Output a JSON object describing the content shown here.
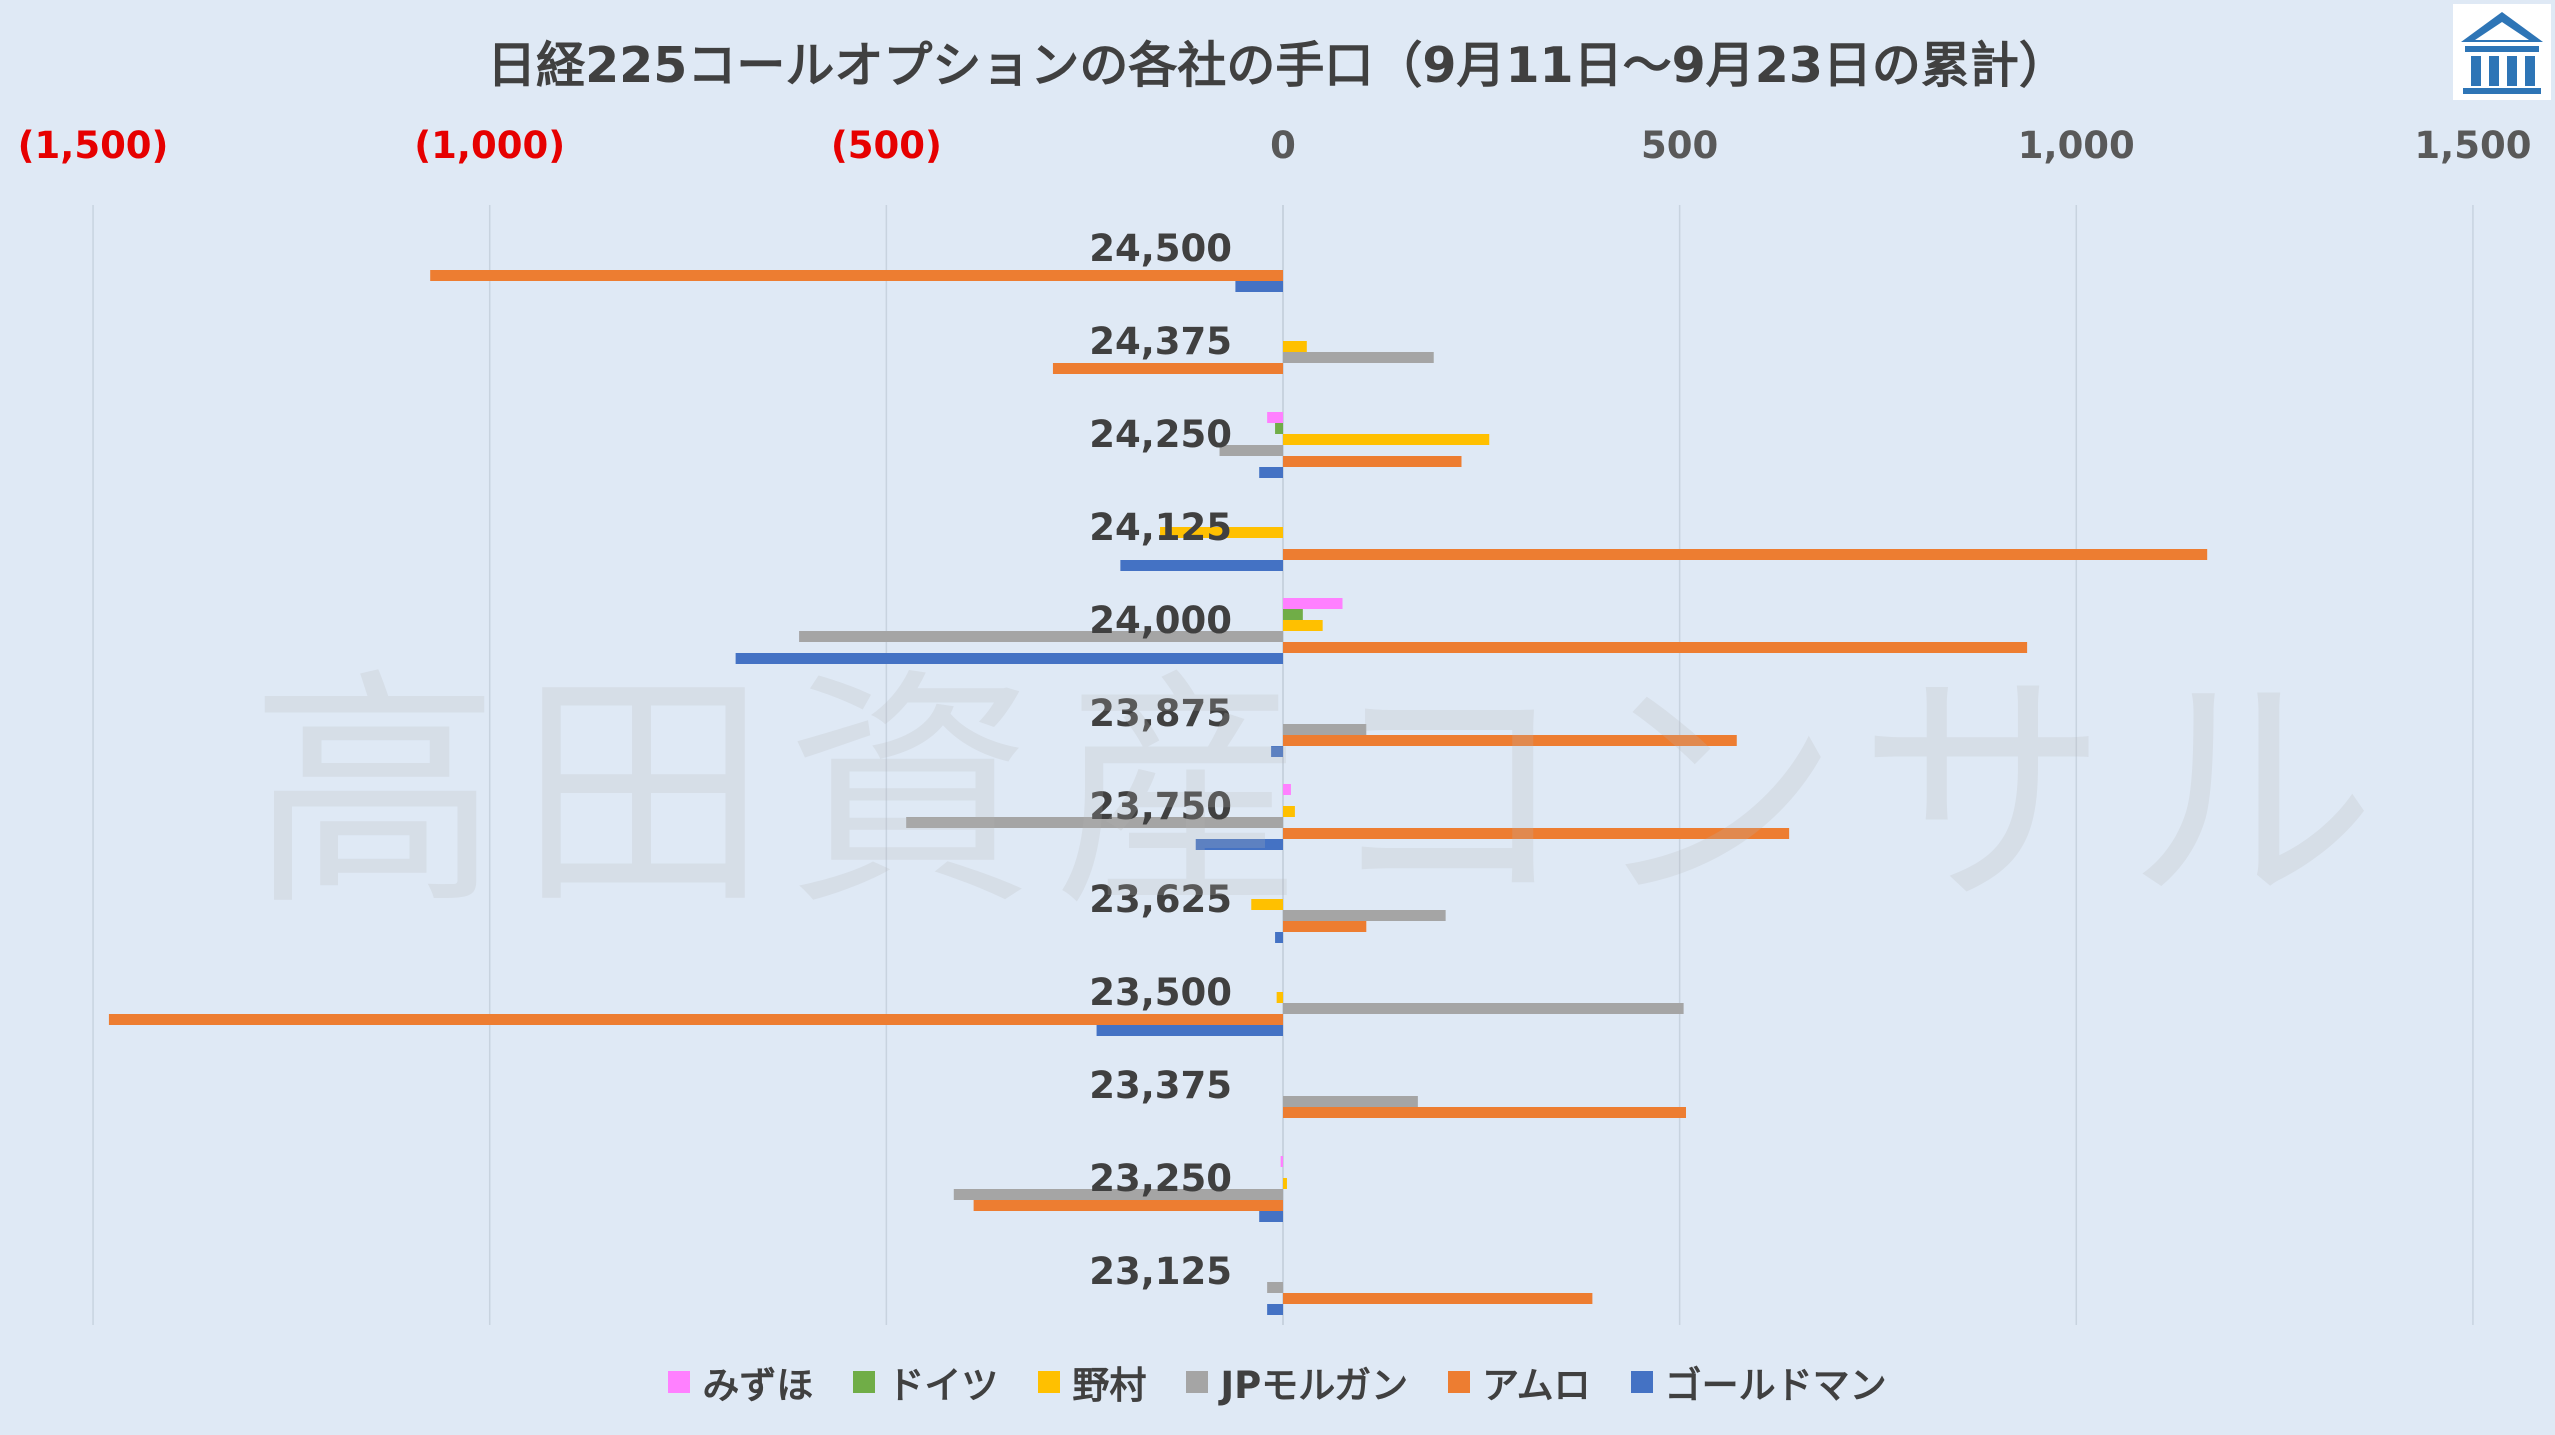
{
  "title": "日経225コールオプションの各社の手口（9月11日～9月23日の累計）",
  "watermark": "高田資産コンサル",
  "logo_icon": "building-logo-icon",
  "colors": {
    "background": "#dfe9f5",
    "grid": "#c8d3df",
    "negative_tick": "#e60000",
    "positive_tick": "#595959",
    "category_label": "#404040",
    "logo": "#2e75b6"
  },
  "chart_data": {
    "type": "bar",
    "orientation": "horizontal",
    "xlim": [
      -1500,
      1500
    ],
    "x_ticks": [
      {
        "value": -1500,
        "label": "(1,500)"
      },
      {
        "value": -1000,
        "label": "(1,000)"
      },
      {
        "value": -500,
        "label": "(500)"
      },
      {
        "value": 0,
        "label": "0"
      },
      {
        "value": 500,
        "label": "500"
      },
      {
        "value": 1000,
        "label": "1,000"
      },
      {
        "value": 1500,
        "label": "1,500"
      }
    ],
    "grid": true,
    "legend_position": "bottom",
    "categories": [
      "24,500",
      "24,375",
      "24,250",
      "24,125",
      "24,000",
      "23,875",
      "23,750",
      "23,625",
      "23,500",
      "23,375",
      "23,250",
      "23,125"
    ],
    "series": [
      {
        "name": "みずほ",
        "color": "#ff80ff",
        "values": [
          0,
          0,
          -20,
          0,
          75,
          0,
          10,
          0,
          0,
          0,
          -3,
          0
        ]
      },
      {
        "name": "ドイツ",
        "color": "#70ad47",
        "values": [
          0,
          0,
          -10,
          0,
          25,
          0,
          0,
          0,
          0,
          0,
          0,
          0
        ]
      },
      {
        "name": "野村",
        "color": "#ffc000",
        "values": [
          0,
          30,
          260,
          -155,
          50,
          0,
          15,
          -40,
          -8,
          0,
          5,
          0
        ]
      },
      {
        "name": "JPモルガン",
        "color": "#a5a5a5",
        "values": [
          0,
          190,
          -80,
          0,
          -610,
          105,
          -475,
          205,
          505,
          170,
          -415,
          -20
        ]
      },
      {
        "name": "アムロ",
        "color": "#ed7d31",
        "values": [
          -1075,
          -290,
          225,
          1165,
          938,
          572,
          638,
          105,
          -1480,
          508,
          -390,
          390
        ]
      },
      {
        "name": "ゴールドマン",
        "color": "#4472c4",
        "values": [
          -60,
          0,
          -30,
          -205,
          -690,
          -15,
          -110,
          -10,
          -235,
          0,
          -30,
          -20
        ]
      }
    ]
  }
}
